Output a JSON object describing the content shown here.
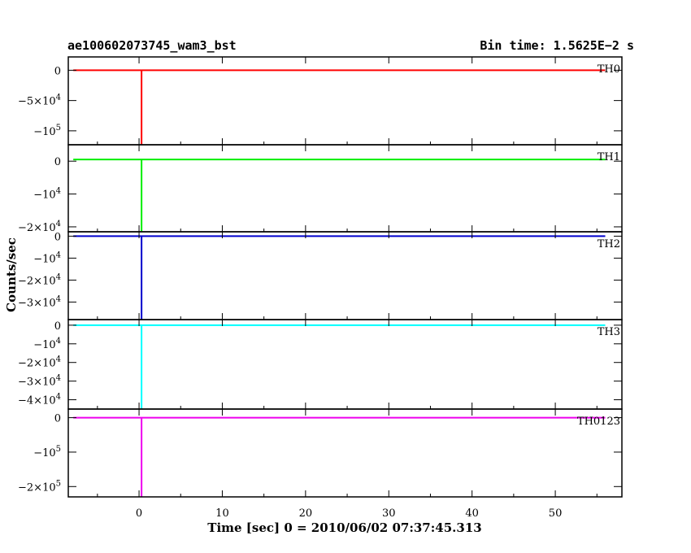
{
  "header": {
    "left_title": "ae100602073745_wam3_bst",
    "right_title": "Bin time: 1.5625E−2 s"
  },
  "colors": {
    "TH0": "#ff0000",
    "TH1": "#00ee00",
    "TH2": "#0000cc",
    "TH3": "#00ffff",
    "TH0123": "#ee00ee"
  },
  "chart_data": {
    "type": "line",
    "title": "",
    "xlabel": "Time [sec] 0 = 2010/06/02 07:37:45.313",
    "ylabel": "Counts/sec",
    "xlim": [
      -8.5,
      58
    ],
    "x_ticks": [
      0,
      10,
      20,
      30,
      40,
      50
    ],
    "x_tick_labels": [
      "0",
      "10",
      "20",
      "30",
      "40",
      "50"
    ],
    "grid": false,
    "data_range_x": [
      -7.9,
      56
    ],
    "panels": [
      {
        "name": "TH0",
        "ylim": [
          -123000,
          22000
        ],
        "y_ticks": [
          0,
          -50000,
          -100000
        ],
        "y_tick_labels": [
          {
            "base": "0",
            "exp": ""
          },
          {
            "base": "−5×10",
            "exp": "4"
          },
          {
            "base": "−10",
            "exp": "5"
          }
        ],
        "baseline": 0,
        "spike": {
          "x": 0.3,
          "min": -123000
        }
      },
      {
        "name": "TH1",
        "ylim": [
          -21500,
          5000
        ],
        "y_ticks": [
          0,
          -10000,
          -20000
        ],
        "y_tick_labels": [
          {
            "base": "0",
            "exp": ""
          },
          {
            "base": "−10",
            "exp": "4"
          },
          {
            "base": "−2×10",
            "exp": "4"
          }
        ],
        "baseline": 500,
        "spike": {
          "x": 0.3,
          "min": -21500
        }
      },
      {
        "name": "TH2",
        "ylim": [
          -38000,
          2000
        ],
        "y_ticks": [
          0,
          -10000,
          -20000,
          -30000
        ],
        "y_tick_labels": [
          {
            "base": "0",
            "exp": ""
          },
          {
            "base": "−10",
            "exp": "4"
          },
          {
            "base": "−2×10",
            "exp": "4"
          },
          {
            "base": "−3×10",
            "exp": "4"
          }
        ],
        "baseline": 0,
        "spike": {
          "x": 0.3,
          "min": -38000
        }
      },
      {
        "name": "TH3",
        "ylim": [
          -45000,
          3000
        ],
        "y_ticks": [
          0,
          -10000,
          -20000,
          -30000,
          -40000
        ],
        "y_tick_labels": [
          {
            "base": "0",
            "exp": ""
          },
          {
            "base": "−10",
            "exp": "4"
          },
          {
            "base": "−2×10",
            "exp": "4"
          },
          {
            "base": "−3×10",
            "exp": "4"
          },
          {
            "base": "−4×10",
            "exp": "4"
          }
        ],
        "baseline": 0,
        "spike": {
          "x": 0.3,
          "min": -45000
        }
      },
      {
        "name": "TH0123",
        "ylim": [
          -230000,
          25000
        ],
        "y_ticks": [
          0,
          -100000,
          -200000
        ],
        "y_tick_labels": [
          {
            "base": "0",
            "exp": ""
          },
          {
            "base": "−10",
            "exp": "5"
          },
          {
            "base": "−2×10",
            "exp": "5"
          }
        ],
        "baseline": 0,
        "spike": {
          "x": 0.3,
          "min": -230000
        }
      }
    ]
  }
}
